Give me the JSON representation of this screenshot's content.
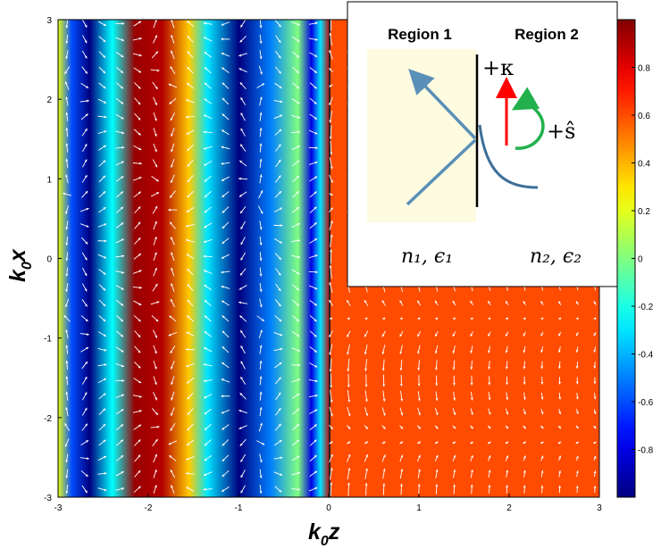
{
  "chart_data": {
    "type": "heatmap",
    "xlabel_main": "k",
    "xlabel_sub": "0",
    "xlabel_var": "z",
    "ylabel_main": "k",
    "ylabel_sub": "0",
    "ylabel_var": "x",
    "xlim": [
      -3,
      3
    ],
    "ylim": [
      -3,
      3
    ],
    "x_ticks": [
      "-3",
      "-2",
      "-1",
      "0",
      "1",
      "2",
      "3"
    ],
    "y_ticks": [
      "-3",
      "-2",
      "-1",
      "0",
      "1",
      "2",
      "3"
    ],
    "colorbar": {
      "range": [
        -1,
        1
      ],
      "ticks": [
        "-0.8",
        "-0.6",
        "-0.4",
        "-0.2",
        "0",
        "0.2",
        "0.4",
        "0.6",
        "0.8"
      ],
      "colormap": "jet"
    },
    "interface_z": 0,
    "region2_uniform_value": 0.6,
    "region1_profile": [
      {
        "z": -3.0,
        "value": 0.2
      },
      {
        "z": -2.85,
        "value": -0.6
      },
      {
        "z": -2.65,
        "value": -1.0
      },
      {
        "z": -2.4,
        "value": -0.25
      },
      {
        "z": -2.15,
        "value": 0.95
      },
      {
        "z": -1.85,
        "value": 0.9
      },
      {
        "z": -1.55,
        "value": 0.35
      },
      {
        "z": -1.35,
        "value": -0.3
      },
      {
        "z": -1.0,
        "value": -1.0
      },
      {
        "z": -0.65,
        "value": -0.5
      },
      {
        "z": -0.35,
        "value": 0.0
      },
      {
        "z": -0.2,
        "value": -0.8
      },
      {
        "z": -0.1,
        "value": -0.3
      },
      {
        "z": 0.0,
        "value": 0.85
      }
    ],
    "vector_field": "white arrows showing field direction; circulating in region 1, mostly vertical in region 2"
  },
  "inset": {
    "region1_label": "Region 1",
    "region2_label": "Region 2",
    "kappa_label": "+κ",
    "s_label": "+ŝ",
    "n1_label": "n₁, ϵ₁",
    "n2_label": "n₂, ϵ₂"
  },
  "colors": {
    "region2_fill": "#ff8c0a",
    "inset_region1_fill": "#fdfbe0",
    "inset_arrow": "#5a8fb8",
    "kappa_arrow": "#ff0000",
    "s_arrow": "#22b14c",
    "vector_arrow": "#ffffff"
  }
}
